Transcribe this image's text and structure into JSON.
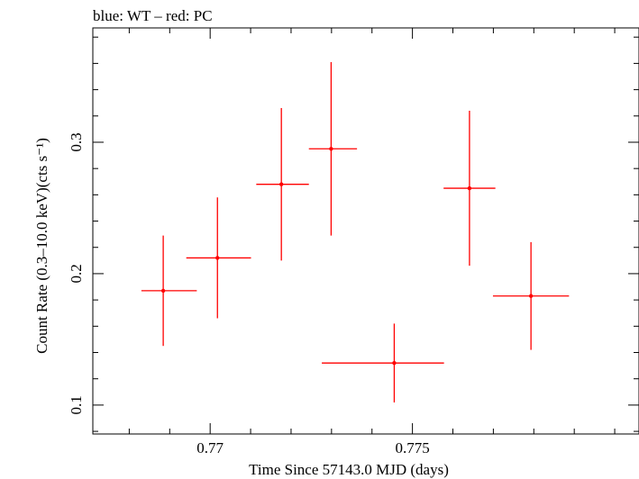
{
  "chart_data": {
    "type": "scatter",
    "title": "blue: WT – red: PC",
    "xlabel": "Time Since 57143.0 MJD (days)",
    "ylabel": "Count Rate (0.3–10.0 keV)(cts s⁻¹)",
    "xlim": [
      0.7671,
      0.7806
    ],
    "ylim": [
      0.078,
      0.387
    ],
    "xticks": [
      0.77,
      0.775
    ],
    "xtick_labels": [
      "0.77",
      "0.775"
    ],
    "yticks": [
      0.1,
      0.2,
      0.3
    ],
    "ytick_labels": [
      "0.1",
      "0.2",
      "0.3"
    ],
    "series": [
      {
        "name": "PC",
        "color": "#ff0000",
        "points": [
          {
            "x": 0.76884,
            "y": 0.187,
            "xerr_lo": 0.00054,
            "xerr_hi": 0.00083,
            "yerr_lo": 0.042,
            "yerr_hi": 0.042
          },
          {
            "x": 0.77018,
            "y": 0.212,
            "xerr_lo": 0.00077,
            "xerr_hi": 0.00083,
            "yerr_lo": 0.046,
            "yerr_hi": 0.046
          },
          {
            "x": 0.77176,
            "y": 0.268,
            "xerr_lo": 0.00062,
            "xerr_hi": 0.00068,
            "yerr_lo": 0.058,
            "yerr_hi": 0.058
          },
          {
            "x": 0.77299,
            "y": 0.295,
            "xerr_lo": 0.00055,
            "xerr_hi": 0.00064,
            "yerr_lo": 0.066,
            "yerr_hi": 0.066
          },
          {
            "x": 0.77455,
            "y": 0.132,
            "xerr_lo": 0.00179,
            "xerr_hi": 0.00123,
            "yerr_lo": 0.03,
            "yerr_hi": 0.03
          },
          {
            "x": 0.77641,
            "y": 0.265,
            "xerr_lo": 0.00064,
            "xerr_hi": 0.00064,
            "yerr_lo": 0.059,
            "yerr_hi": 0.059
          },
          {
            "x": 0.77793,
            "y": 0.183,
            "xerr_lo": 0.00094,
            "xerr_hi": 0.00094,
            "yerr_lo": 0.041,
            "yerr_hi": 0.041
          }
        ]
      }
    ]
  }
}
